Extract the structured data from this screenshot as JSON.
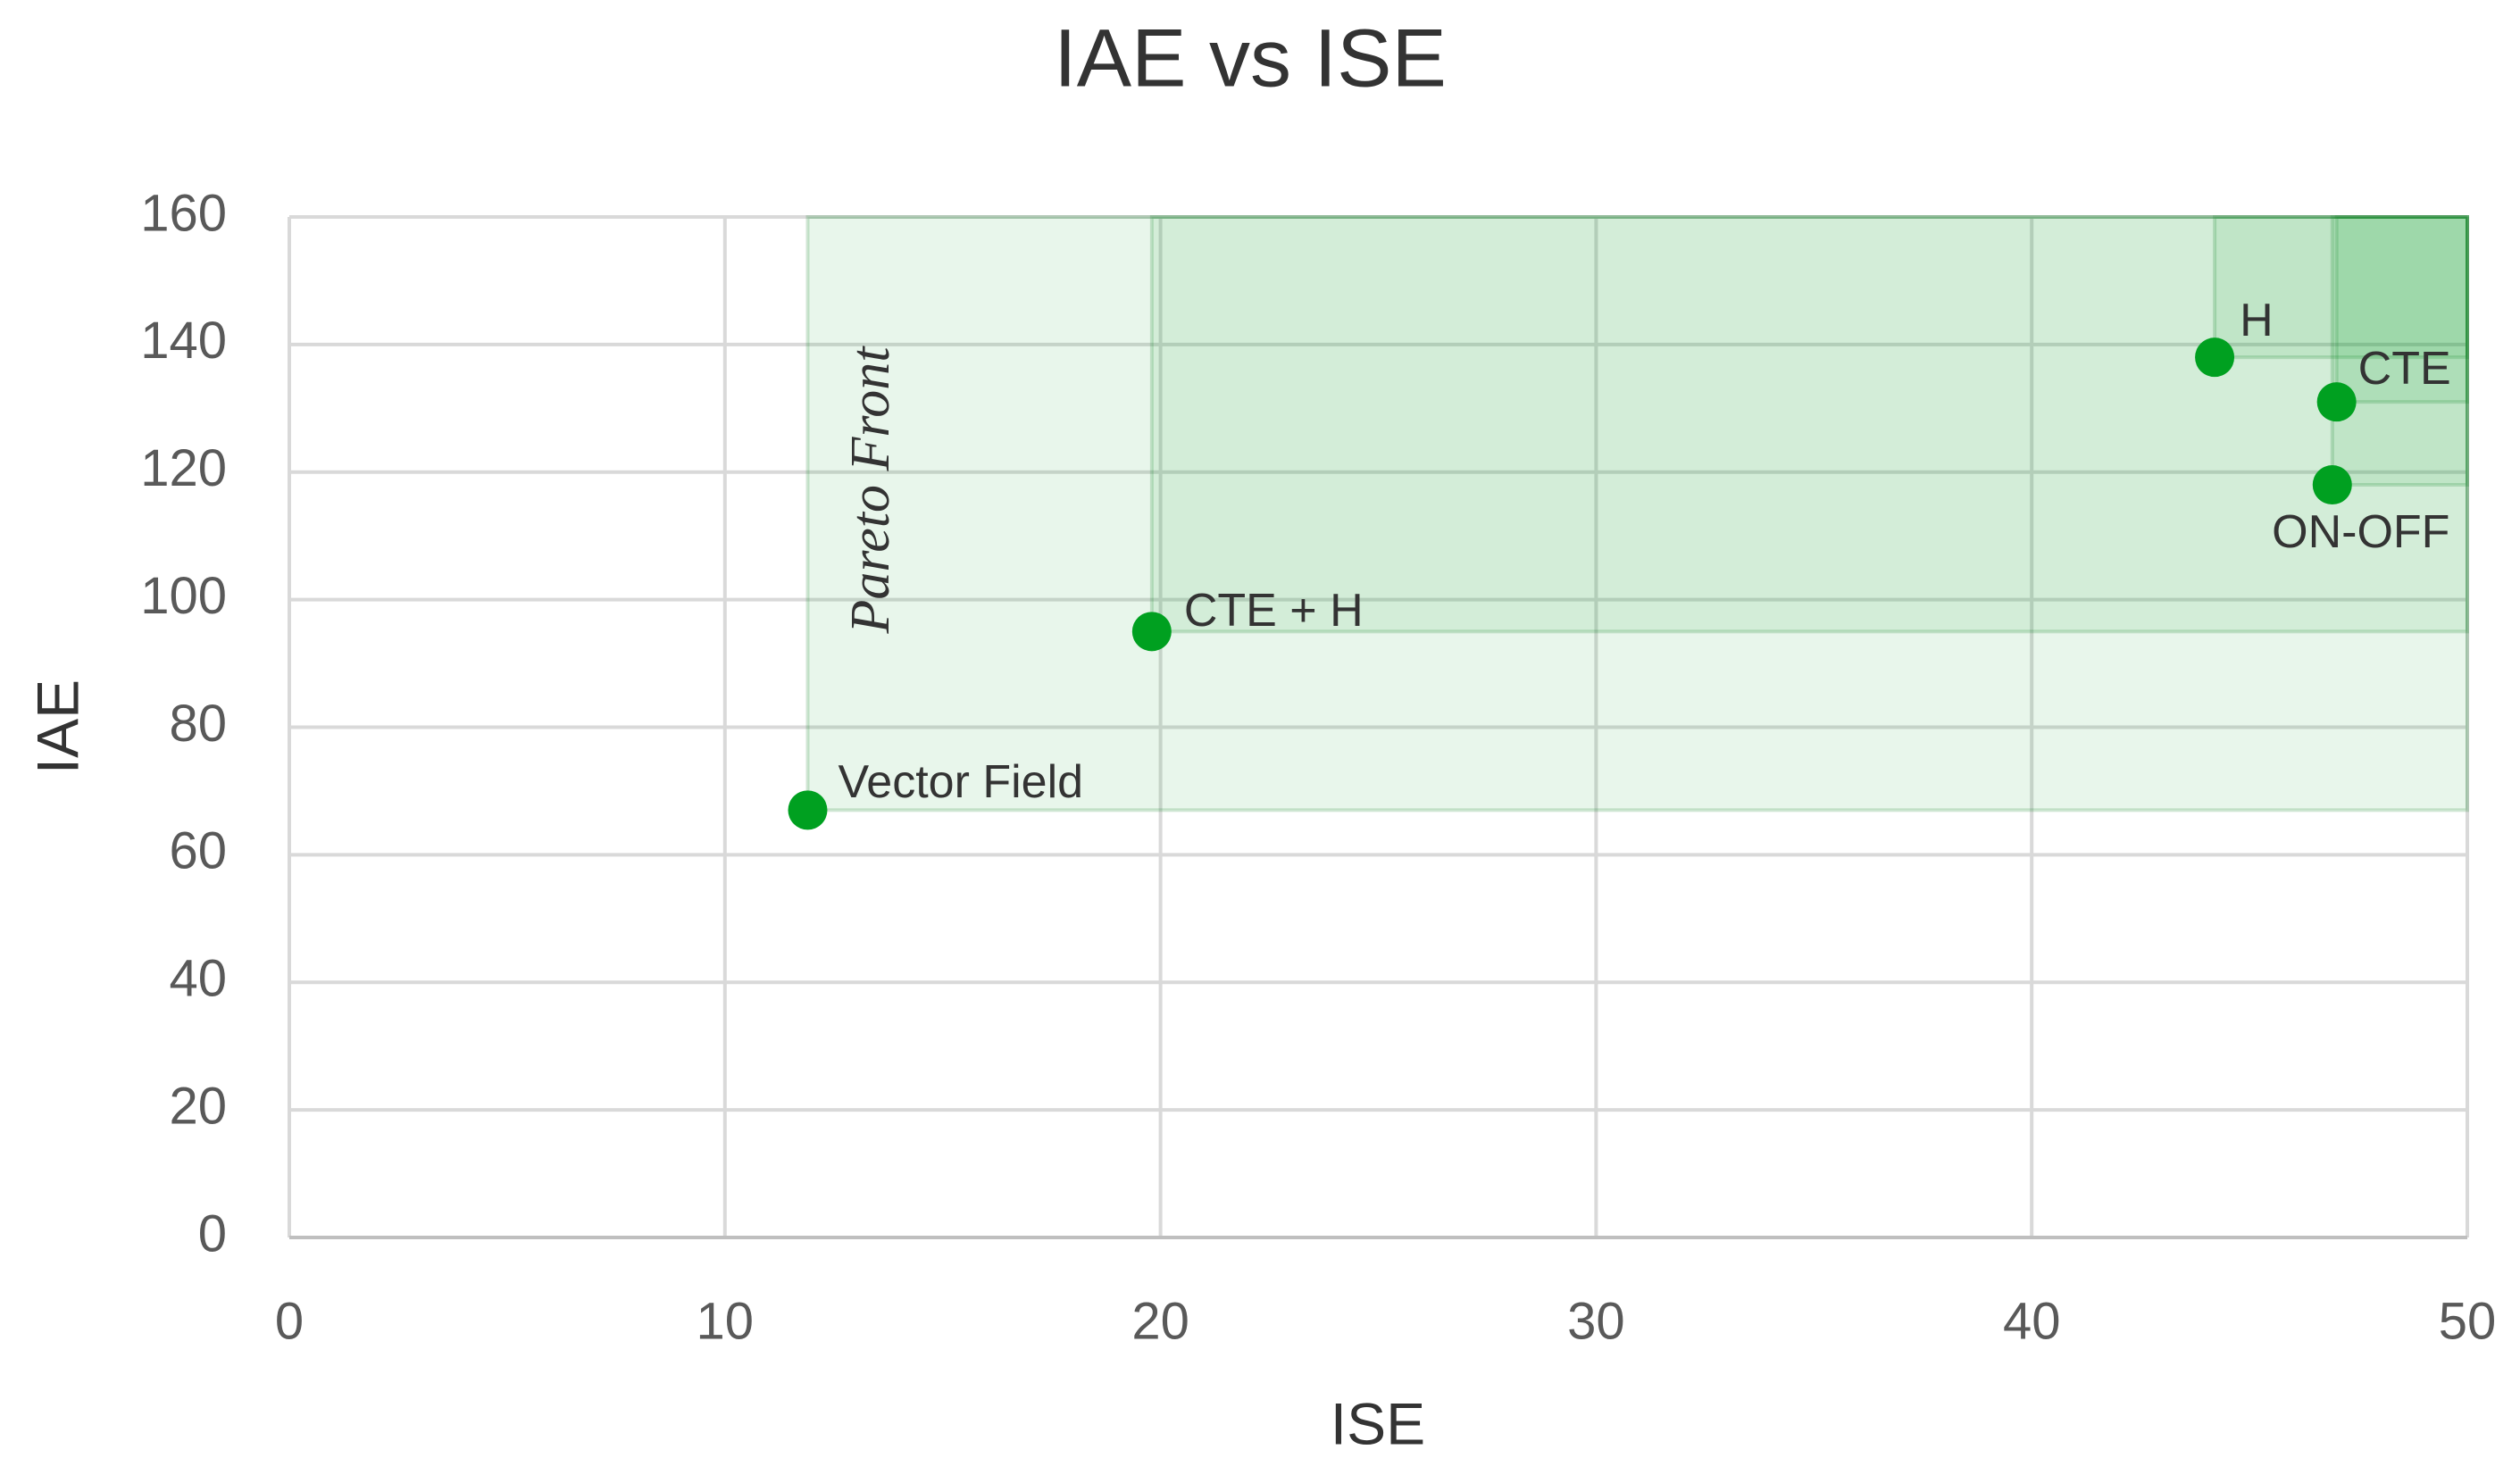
{
  "chart_data": {
    "type": "scatter",
    "title": "IAE vs ISE",
    "x_label": "ISE",
    "y_label": "IAE",
    "x": [
      11.9,
      19.8,
      44.2,
      47.0,
      46.9
    ],
    "series": [
      {
        "color": "#00a020",
        "values": [
          67,
          95,
          138,
          131,
          118
        ]
      }
    ],
    "labels": [
      "Vector Field",
      "CTE + H",
      "H",
      "CTE",
      "ON-OFF"
    ],
    "annotation": "Pareto Front",
    "xlim": [
      0,
      50
    ],
    "xticks": [
      0,
      10,
      20,
      30,
      40,
      50
    ],
    "ylim": [
      0,
      160
    ],
    "yticks": [
      0,
      20,
      40,
      60,
      80,
      100,
      120,
      140,
      160
    ],
    "grid": true
  }
}
